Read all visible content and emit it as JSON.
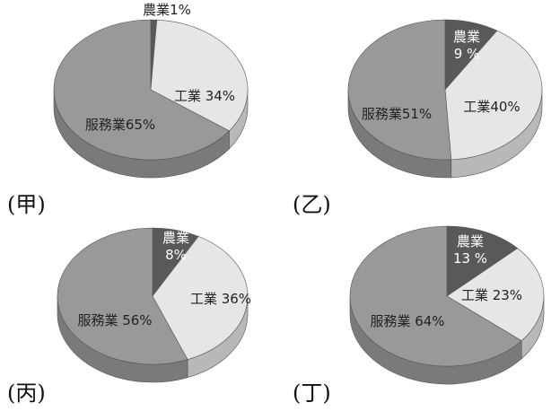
{
  "chart_data": [
    {
      "type": "pie",
      "panel_label": "(甲)",
      "categories": [
        "農業",
        "工業",
        "服務業"
      ],
      "values": [
        1,
        34,
        65
      ],
      "data_labels": [
        "農業1%",
        "工業 34%",
        "服務業65%"
      ],
      "colors": [
        "#595959",
        "#e6e6e6",
        "#999999"
      ]
    },
    {
      "type": "pie",
      "panel_label": "(乙)",
      "categories": [
        "農業",
        "工業",
        "服務業"
      ],
      "values": [
        9,
        40,
        51
      ],
      "data_labels": [
        "農業\n9 %",
        "工業40%",
        "服務業51%"
      ],
      "colors": [
        "#595959",
        "#e6e6e6",
        "#999999"
      ]
    },
    {
      "type": "pie",
      "panel_label": "(丙)",
      "categories": [
        "農業",
        "工業",
        "服務業"
      ],
      "values": [
        8,
        36,
        56
      ],
      "data_labels": [
        "農業\n8%",
        "工業 36%",
        "服務業 56%"
      ],
      "colors": [
        "#595959",
        "#e6e6e6",
        "#999999"
      ]
    },
    {
      "type": "pie",
      "panel_label": "(丁)",
      "categories": [
        "農業",
        "工業",
        "服務業"
      ],
      "values": [
        13,
        23,
        64
      ],
      "data_labels": [
        "農業\n13 %",
        "工業 23%",
        "服務業 64%"
      ],
      "colors": [
        "#595959",
        "#e6e6e6",
        "#999999"
      ]
    }
  ]
}
